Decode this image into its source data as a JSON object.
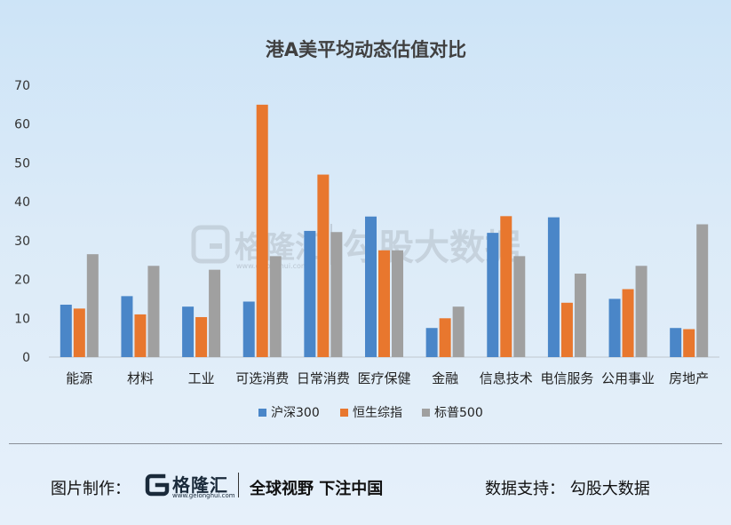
{
  "chart_data": {
    "type": "bar",
    "title": "港A美平均动态估值对比",
    "categories": [
      "能源",
      "材料",
      "工业",
      "可选消费",
      "日常消费",
      "医疗保健",
      "金融",
      "信息技术",
      "电信服务",
      "公用事业",
      "房地产"
    ],
    "series": [
      {
        "name": "沪深300",
        "color": "#4a86c8",
        "values": [
          13.5,
          15.7,
          13.0,
          14.3,
          32.5,
          36.2,
          7.5,
          32.0,
          36.0,
          15.0,
          7.5
        ]
      },
      {
        "name": "恒生综指",
        "color": "#e8772e",
        "values": [
          12.5,
          11.0,
          10.3,
          65.0,
          47.0,
          27.5,
          10.0,
          36.3,
          14.0,
          17.5,
          7.2
        ]
      },
      {
        "name": "标普500",
        "color": "#a0a0a0",
        "values": [
          26.5,
          23.5,
          22.5,
          26.0,
          32.2,
          27.5,
          13.0,
          26.0,
          21.5,
          23.5,
          34.2
        ]
      }
    ],
    "ylim": [
      0,
      70
    ],
    "yticks": [
      0,
      10,
      20,
      30,
      40,
      50,
      60,
      70
    ],
    "xlabel": "",
    "ylabel": "",
    "grid": false,
    "legend": "bottom"
  },
  "watermark": {
    "brand": "格隆汇",
    "url": "www.gelonghui.com",
    "text": "勾股大数据"
  },
  "footer": {
    "left_label": "图片制作：",
    "logo_brand": "格隆汇",
    "logo_url": "www.gelonghui.com",
    "slogan": "全球视野 下注中国",
    "right_label": "数据支持：  勾股大数据"
  },
  "colors": {
    "accent_blue": "#4a86c8",
    "accent_orange": "#e8772e",
    "accent_gray": "#a0a0a0"
  }
}
